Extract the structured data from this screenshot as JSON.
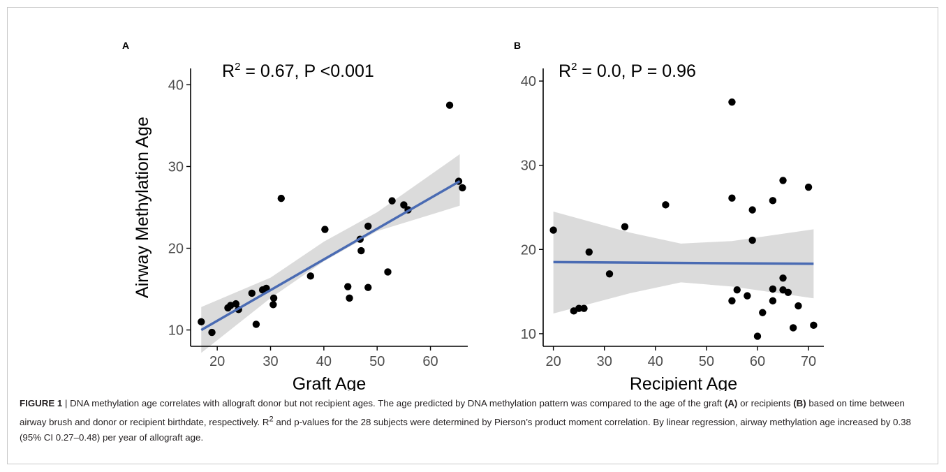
{
  "panels": [
    {
      "letter": "A",
      "stat_main": "R",
      "stat_sup": "2",
      "stat_rest": " = 0.67, P <0.001",
      "xlabel": "Graft Age",
      "ylabel": "Airway Methylation Age",
      "x_ticks": [
        20,
        30,
        40,
        50,
        60
      ],
      "y_ticks": [
        10,
        20,
        30,
        40
      ]
    },
    {
      "letter": "B",
      "stat_main": "R",
      "stat_sup": "2",
      "stat_rest": " = 0.0, P = 0.96",
      "xlabel": "Recipient Age",
      "ylabel": "",
      "x_ticks": [
        20,
        30,
        40,
        50,
        60,
        70
      ],
      "y_ticks": [
        10,
        20,
        30,
        40
      ]
    }
  ],
  "chart_data": [
    {
      "type": "scatter",
      "title": "R² = 0.67, P <0.001",
      "xlabel": "Graft Age",
      "ylabel": "Airway Methylation Age",
      "xlim": [
        15,
        67
      ],
      "ylim": [
        8,
        42
      ],
      "points": [
        [
          17,
          11
        ],
        [
          19,
          9.7
        ],
        [
          22,
          12.7
        ],
        [
          22.5,
          13
        ],
        [
          23.5,
          13.2
        ],
        [
          24,
          12.5
        ],
        [
          26.5,
          14.5
        ],
        [
          27.3,
          10.7
        ],
        [
          28.5,
          14.9
        ],
        [
          29.2,
          15.1
        ],
        [
          30.6,
          13.9
        ],
        [
          30.5,
          13.1
        ],
        [
          32,
          26.1
        ],
        [
          37.5,
          16.6
        ],
        [
          40.2,
          22.3
        ],
        [
          44.5,
          15.3
        ],
        [
          44.8,
          13.9
        ],
        [
          46.8,
          21.1
        ],
        [
          47,
          19.7
        ],
        [
          48.3,
          22.7
        ],
        [
          48.3,
          15.2
        ],
        [
          52,
          17.1
        ],
        [
          52.8,
          25.8
        ],
        [
          55,
          25.3
        ],
        [
          55.8,
          24.7
        ],
        [
          63.6,
          37.5
        ],
        [
          65.3,
          28.2
        ],
        [
          66,
          27.4
        ]
      ],
      "fit_line": [
        [
          17,
          10.0
        ],
        [
          65.5,
          28.2
        ]
      ],
      "ci_band": [
        [
          17,
          7.2,
          12.8
        ],
        [
          30,
          13.9,
          16.4
        ],
        [
          40,
          18.4,
          20.8
        ],
        [
          50,
          22.1,
          24.4
        ],
        [
          65.5,
          25.2,
          31.5
        ]
      ],
      "colors": {
        "points": "#000000",
        "line": "#4a6bb3",
        "band": "#d5d5d5"
      }
    },
    {
      "type": "scatter",
      "title": "R² = 0.0, P = 0.96",
      "xlabel": "Recipient Age",
      "ylabel": "",
      "xlim": [
        18,
        73
      ],
      "ylim": [
        8.5,
        41.5
      ],
      "points": [
        [
          20,
          22.3
        ],
        [
          24,
          12.7
        ],
        [
          25,
          13
        ],
        [
          26,
          13
        ],
        [
          27,
          19.7
        ],
        [
          31,
          17.1
        ],
        [
          34,
          22.7
        ],
        [
          42,
          25.3
        ],
        [
          55,
          37.5
        ],
        [
          55,
          26.1
        ],
        [
          55,
          13.9
        ],
        [
          56,
          15.2
        ],
        [
          58,
          14.5
        ],
        [
          59,
          24.7
        ],
        [
          59,
          21.1
        ],
        [
          60,
          9.7
        ],
        [
          61,
          12.5
        ],
        [
          63,
          25.8
        ],
        [
          63,
          15.3
        ],
        [
          63,
          13.9
        ],
        [
          65,
          28.2
        ],
        [
          65,
          16.6
        ],
        [
          65,
          15.2
        ],
        [
          66,
          14.9
        ],
        [
          67,
          10.7
        ],
        [
          68,
          13.3
        ],
        [
          70,
          27.4
        ],
        [
          71,
          11
        ]
      ],
      "fit_line": [
        [
          20,
          18.5
        ],
        [
          71,
          18.3
        ]
      ],
      "ci_band": [
        [
          20,
          12.4,
          24.5
        ],
        [
          35,
          14.8,
          22.0
        ],
        [
          45,
          16.1,
          20.7
        ],
        [
          55,
          15.6,
          21.0
        ],
        [
          71,
          14.2,
          22.4
        ]
      ],
      "colors": {
        "points": "#000000",
        "line": "#4a6bb3",
        "band": "#d5d5d5"
      }
    }
  ],
  "caption": {
    "lead": "FIGURE 1",
    "body_html": " | DNA methylation age correlates with allograft donor but not recipient ages. The age predicted by DNA methylation pattern was compared to the age of the graft <b>(A)</b> or recipients <b>(B)</b> based on time between airway brush and donor or recipient birthdate, respectively. R<sup>2</sup> and p-values for the 28 subjects were determined by Pierson’s product moment correlation. By linear regression, airway methylation age increased by 0.38 (95% CI 0.27–0.48) per year of allograft age."
  }
}
